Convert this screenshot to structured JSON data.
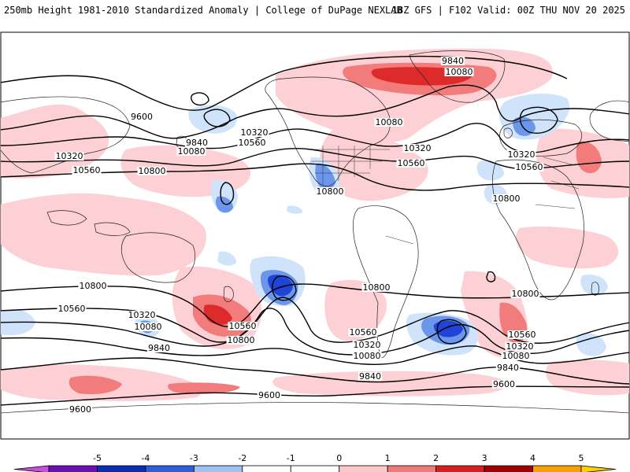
{
  "header": {
    "left": "250mb Height 1981-2010 Standardized Anomaly | College of DuPage NEXLAB",
    "right": "18Z GFS | F102 Valid: 00Z THU NOV 20 2025"
  },
  "colors": {
    "pos1": "#fcd0d4",
    "pos2": "#f27b7b",
    "pos3": "#dd2a2a",
    "pos4": "#b70000",
    "pos5": "#f59d00",
    "neg1": "#cfe3fb",
    "neg2": "#6b96ea",
    "neg3": "#1f44d6",
    "neg4": "#00288f",
    "neg5": "#8f00c8",
    "contour": "#000000",
    "coast": "#222222"
  },
  "colorbar": {
    "ticks": [
      "-5",
      "-4",
      "-3",
      "-2",
      "-1",
      "0",
      "1",
      "2",
      "3",
      "4",
      "5"
    ],
    "colors": [
      "#c64fe0",
      "#6a0fb4",
      "#0a2eb0",
      "#2b5ed8",
      "#9ec0f2",
      "#ffffff",
      "#ffffff",
      "#fcc8c8",
      "#f07a7a",
      "#d62020",
      "#a00000",
      "#f7a000",
      "#f9d000"
    ]
  },
  "contour_labels": [
    {
      "text": "9840",
      "id": "c1"
    },
    {
      "text": "10080",
      "id": "c2"
    },
    {
      "text": "9600",
      "id": "c3"
    },
    {
      "text": "9840",
      "id": "c4"
    },
    {
      "text": "10080",
      "id": "c5"
    },
    {
      "text": "10320",
      "id": "c6"
    },
    {
      "text": "10560",
      "id": "c7"
    },
    {
      "text": "10320",
      "id": "c8"
    },
    {
      "text": "10560",
      "id": "c9"
    },
    {
      "text": "10800",
      "id": "c10"
    },
    {
      "text": "10080",
      "id": "c11"
    },
    {
      "text": "10320",
      "id": "c12"
    },
    {
      "text": "10560",
      "id": "c13"
    },
    {
      "text": "10800",
      "id": "c14"
    },
    {
      "text": "10320",
      "id": "c15"
    },
    {
      "text": "10560",
      "id": "c16"
    },
    {
      "text": "10800",
      "id": "c17"
    },
    {
      "text": "10800",
      "id": "c18"
    },
    {
      "text": "10560",
      "id": "c19"
    },
    {
      "text": "10320",
      "id": "c20"
    },
    {
      "text": "10080",
      "id": "c21"
    },
    {
      "text": "9840",
      "id": "c22"
    },
    {
      "text": "10800",
      "id": "c23"
    },
    {
      "text": "10560",
      "id": "c24"
    },
    {
      "text": "10800",
      "id": "c25"
    },
    {
      "text": "10560",
      "id": "c26"
    },
    {
      "text": "10320",
      "id": "c27"
    },
    {
      "text": "10080",
      "id": "c28"
    },
    {
      "text": "9840",
      "id": "c29"
    },
    {
      "text": "9600",
      "id": "c30"
    },
    {
      "text": "10800",
      "id": "c31"
    },
    {
      "text": "10560",
      "id": "c32"
    },
    {
      "text": "10320",
      "id": "c33"
    },
    {
      "text": "10080",
      "id": "c34"
    },
    {
      "text": "9840",
      "id": "c35"
    },
    {
      "text": "9600",
      "id": "c36"
    },
    {
      "text": "9600",
      "id": "c37"
    }
  ]
}
